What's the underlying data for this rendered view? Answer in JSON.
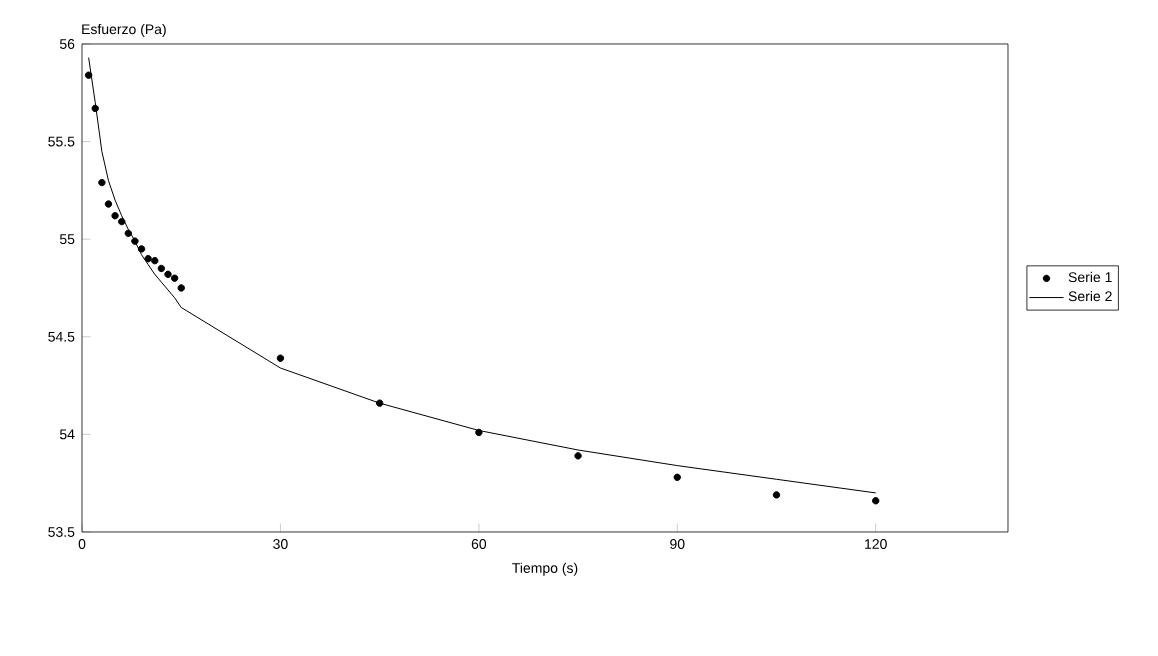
{
  "chart_data": {
    "type": "line",
    "xlabel": "Tiempo (s)",
    "ylabel": "Esfuerzo (Pa)",
    "xlim": [
      0,
      140
    ],
    "ylim": [
      53.5,
      56
    ],
    "xticks": [
      0,
      30,
      60,
      90,
      120
    ],
    "yticks": [
      53.5,
      54,
      54.5,
      55,
      55.5,
      56
    ],
    "legend": "right",
    "grid": false,
    "series": [
      {
        "name": "Serie 1",
        "type": "scatter",
        "marker": "circle",
        "color": "#000000",
        "x": [
          1,
          2,
          3,
          4,
          5,
          6,
          7,
          8,
          9,
          10,
          11,
          12,
          13,
          14,
          15,
          30,
          45,
          60,
          75,
          90,
          105,
          120
        ],
        "values": [
          55.84,
          55.67,
          55.29,
          55.18,
          55.12,
          55.09,
          55.03,
          54.99,
          54.95,
          54.9,
          54.89,
          54.85,
          54.82,
          54.8,
          54.75,
          54.39,
          54.16,
          54.01,
          53.89,
          53.78,
          53.69,
          53.66
        ]
      },
      {
        "name": "Serie 2",
        "marker": "none",
        "color": "#000000",
        "x": [
          1,
          2,
          3,
          4,
          5,
          6,
          7,
          8,
          9,
          10,
          11,
          12,
          13,
          14,
          15,
          30,
          45,
          60,
          75,
          90,
          105,
          120
        ],
        "values": [
          55.93,
          55.7,
          55.45,
          55.3,
          55.2,
          55.12,
          55.05,
          54.99,
          54.92,
          54.87,
          54.82,
          54.78,
          54.74,
          54.7,
          54.65,
          54.34,
          54.16,
          54.02,
          53.92,
          53.84,
          53.77,
          53.7
        ]
      }
    ]
  }
}
